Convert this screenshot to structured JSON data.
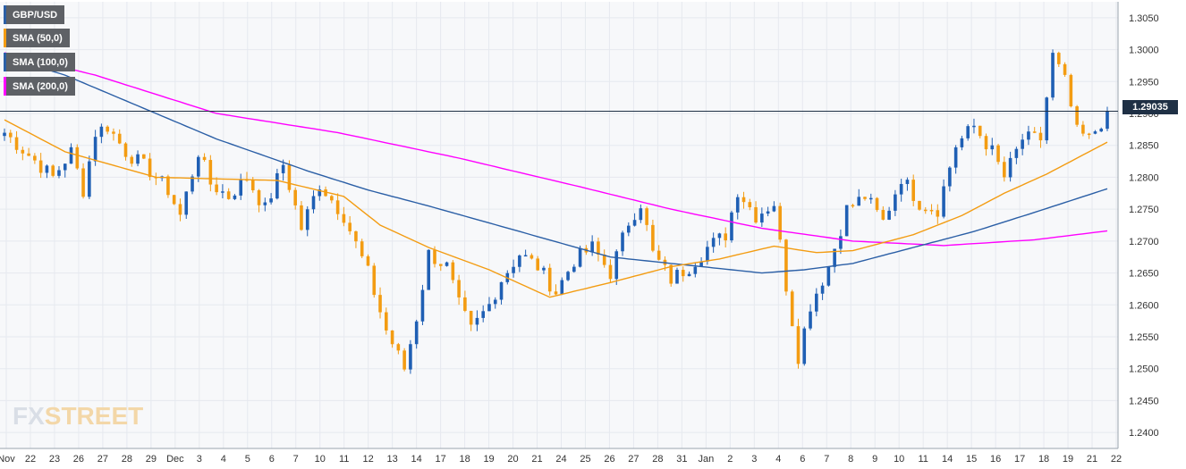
{
  "legend": [
    {
      "label": "GBP/USD",
      "color": "#2b5fa6"
    },
    {
      "label": "SMA (50,0)",
      "color": "#f39c12"
    },
    {
      "label": "SMA (100,0)",
      "color": "#2b5fa6"
    },
    {
      "label": "SMA (200,0)",
      "color": "#ff00ff"
    }
  ],
  "last_price_label": "1.29035",
  "logo": {
    "main": "FX",
    "accent": "STREET"
  },
  "colors": {
    "bull": "#1f5fb4",
    "bear": "#f39c12",
    "sma50": "#f39c12",
    "sma100": "#2b5fa6",
    "sma200": "#ff00ff",
    "grid": "#e6e9ef",
    "price_line": "#1f3045"
  },
  "chart_data": {
    "type": "candlestick",
    "title": "",
    "xlabel": "",
    "ylabel": "",
    "ylim": [
      1.2375,
      1.3075
    ],
    "y_ticks": [
      "1.3050",
      "1.3000",
      "1.2950",
      "1.2900",
      "1.2850",
      "1.2800",
      "1.2750",
      "1.2700",
      "1.2650",
      "1.2600",
      "1.2550",
      "1.2500",
      "1.2450",
      "1.2400"
    ],
    "x_ticks": [
      "Nov",
      "22",
      "23",
      "26",
      "27",
      "28",
      "29",
      "Dec",
      "3",
      "4",
      "5",
      "6",
      "7",
      "10",
      "11",
      "12",
      "13",
      "14",
      "17",
      "18",
      "19",
      "20",
      "21",
      "24",
      "25",
      "26",
      "27",
      "28",
      "31",
      "Jan",
      "2",
      "3",
      "4",
      "6",
      "7",
      "8",
      "9",
      "10",
      "11",
      "14",
      "15",
      "16",
      "17",
      "18",
      "19",
      "21",
      "22"
    ],
    "last_price": 1.29035,
    "anchors": [
      {
        "t": 0,
        "v": 1.287
      },
      {
        "t": 8,
        "v": 1.28
      },
      {
        "t": 11,
        "v": 1.284
      },
      {
        "t": 13,
        "v": 1.278
      },
      {
        "t": 15,
        "v": 1.287
      },
      {
        "t": 17,
        "v": 1.288
      },
      {
        "t": 20,
        "v": 1.284
      },
      {
        "t": 24,
        "v": 1.281
      },
      {
        "t": 27,
        "v": 1.278
      },
      {
        "t": 29,
        "v": 1.274
      },
      {
        "t": 32,
        "v": 1.284
      },
      {
        "t": 34,
        "v": 1.279
      },
      {
        "t": 37,
        "v": 1.277
      },
      {
        "t": 40,
        "v": 1.28
      },
      {
        "t": 43,
        "v": 1.275
      },
      {
        "t": 46,
        "v": 1.282
      },
      {
        "t": 49,
        "v": 1.272
      },
      {
        "t": 52,
        "v": 1.279
      },
      {
        "t": 56,
        "v": 1.274
      },
      {
        "t": 60,
        "v": 1.265
      },
      {
        "t": 63,
        "v": 1.256
      },
      {
        "t": 66,
        "v": 1.25
      },
      {
        "t": 68,
        "v": 1.258
      },
      {
        "t": 70,
        "v": 1.268
      },
      {
        "t": 73,
        "v": 1.266
      },
      {
        "t": 75,
        "v": 1.26
      },
      {
        "t": 77,
        "v": 1.256
      },
      {
        "t": 80,
        "v": 1.26
      },
      {
        "t": 82,
        "v": 1.264
      },
      {
        "t": 85,
        "v": 1.268
      },
      {
        "t": 88,
        "v": 1.266
      },
      {
        "t": 91,
        "v": 1.262
      },
      {
        "t": 94,
        "v": 1.267
      },
      {
        "t": 97,
        "v": 1.269
      },
      {
        "t": 100,
        "v": 1.265
      },
      {
        "t": 103,
        "v": 1.273
      },
      {
        "t": 105,
        "v": 1.276
      },
      {
        "t": 107,
        "v": 1.268
      },
      {
        "t": 110,
        "v": 1.264
      },
      {
        "t": 113,
        "v": 1.266
      },
      {
        "t": 116,
        "v": 1.269
      },
      {
        "t": 119,
        "v": 1.271
      },
      {
        "t": 121,
        "v": 1.278
      },
      {
        "t": 124,
        "v": 1.274
      },
      {
        "t": 127,
        "v": 1.276
      },
      {
        "t": 129,
        "v": 1.263
      },
      {
        "t": 131,
        "v": 1.252
      },
      {
        "t": 133,
        "v": 1.26
      },
      {
        "t": 136,
        "v": 1.266
      },
      {
        "t": 139,
        "v": 1.275
      },
      {
        "t": 142,
        "v": 1.277
      },
      {
        "t": 145,
        "v": 1.273
      },
      {
        "t": 148,
        "v": 1.28
      },
      {
        "t": 151,
        "v": 1.276
      },
      {
        "t": 154,
        "v": 1.275
      },
      {
        "t": 157,
        "v": 1.285
      },
      {
        "t": 160,
        "v": 1.288
      },
      {
        "t": 163,
        "v": 1.284
      },
      {
        "t": 165,
        "v": 1.28
      },
      {
        "t": 168,
        "v": 1.286
      },
      {
        "t": 171,
        "v": 1.286
      },
      {
        "t": 173,
        "v": 1.299
      },
      {
        "t": 175,
        "v": 1.295
      },
      {
        "t": 177,
        "v": 1.287
      },
      {
        "t": 179,
        "v": 1.286
      },
      {
        "t": 182,
        "v": 1.29
      }
    ],
    "sma50": [
      {
        "t": 0,
        "v": 1.289
      },
      {
        "t": 10,
        "v": 1.284
      },
      {
        "t": 25,
        "v": 1.28
      },
      {
        "t": 45,
        "v": 1.2795
      },
      {
        "t": 56,
        "v": 1.277
      },
      {
        "t": 62,
        "v": 1.2725
      },
      {
        "t": 70,
        "v": 1.269
      },
      {
        "t": 80,
        "v": 1.2655
      },
      {
        "t": 90,
        "v": 1.2612
      },
      {
        "t": 100,
        "v": 1.2635
      },
      {
        "t": 110,
        "v": 1.266
      },
      {
        "t": 118,
        "v": 1.2672
      },
      {
        "t": 127,
        "v": 1.2692
      },
      {
        "t": 134,
        "v": 1.2682
      },
      {
        "t": 140,
        "v": 1.2685
      },
      {
        "t": 150,
        "v": 1.271
      },
      {
        "t": 158,
        "v": 1.274
      },
      {
        "t": 165,
        "v": 1.2775
      },
      {
        "t": 172,
        "v": 1.2805
      },
      {
        "t": 178,
        "v": 1.2835
      },
      {
        "t": 182,
        "v": 1.2855
      }
    ],
    "sma100": [
      {
        "t": 0,
        "v": 1.299
      },
      {
        "t": 10,
        "v": 1.296
      },
      {
        "t": 20,
        "v": 1.292
      },
      {
        "t": 35,
        "v": 1.286
      },
      {
        "t": 50,
        "v": 1.281
      },
      {
        "t": 60,
        "v": 1.278
      },
      {
        "t": 70,
        "v": 1.2755
      },
      {
        "t": 85,
        "v": 1.2715
      },
      {
        "t": 100,
        "v": 1.2675
      },
      {
        "t": 115,
        "v": 1.266
      },
      {
        "t": 125,
        "v": 1.265
      },
      {
        "t": 132,
        "v": 1.2655
      },
      {
        "t": 140,
        "v": 1.2665
      },
      {
        "t": 150,
        "v": 1.269
      },
      {
        "t": 160,
        "v": 1.2715
      },
      {
        "t": 170,
        "v": 1.2745
      },
      {
        "t": 182,
        "v": 1.2782
      }
    ],
    "sma200": [
      {
        "t": 0,
        "v": 1.2995
      },
      {
        "t": 15,
        "v": 1.296
      },
      {
        "t": 35,
        "v": 1.29
      },
      {
        "t": 55,
        "v": 1.287
      },
      {
        "t": 75,
        "v": 1.283
      },
      {
        "t": 95,
        "v": 1.2785
      },
      {
        "t": 110,
        "v": 1.275
      },
      {
        "t": 125,
        "v": 1.272
      },
      {
        "t": 140,
        "v": 1.27
      },
      {
        "t": 155,
        "v": 1.2693
      },
      {
        "t": 170,
        "v": 1.2702
      },
      {
        "t": 182,
        "v": 1.2716
      }
    ]
  }
}
